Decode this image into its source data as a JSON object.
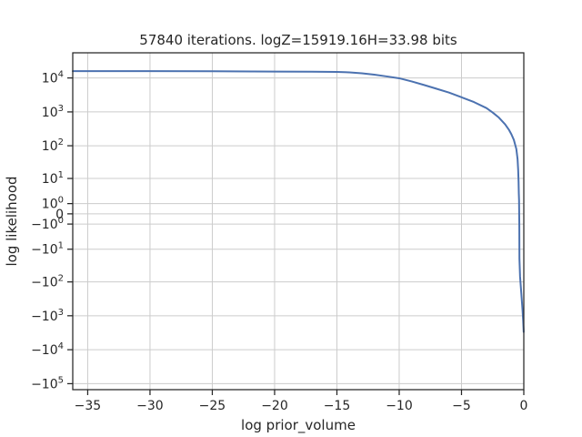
{
  "chart_data": {
    "type": "line",
    "title": "57840 iterations. logZ=15919.16H=33.98 bits",
    "xlabel": "log prior_volume",
    "ylabel": "log likelihood",
    "xlim": [
      -36.2,
      0
    ],
    "yscale": "symlog",
    "ylim_display": [
      -150000,
      55000
    ],
    "grid": true,
    "legend": "none",
    "line_color": "#4c72b0",
    "x_ticks": [
      {
        "value": -35,
        "label": "−35"
      },
      {
        "value": -30,
        "label": "−30"
      },
      {
        "value": -25,
        "label": "−25"
      },
      {
        "value": -20,
        "label": "−20"
      },
      {
        "value": -15,
        "label": "−15"
      },
      {
        "value": -10,
        "label": "−10"
      },
      {
        "value": -5,
        "label": "−5"
      },
      {
        "value": 0,
        "label": "0"
      }
    ],
    "y_ticks": [
      {
        "value": 10000,
        "base": "10",
        "exp": "4"
      },
      {
        "value": 1000,
        "base": "10",
        "exp": "3"
      },
      {
        "value": 100,
        "base": "10",
        "exp": "2"
      },
      {
        "value": 10,
        "base": "10",
        "exp": "1"
      },
      {
        "value": 1,
        "base": "10",
        "exp": "0"
      },
      {
        "value": 0,
        "base": "0",
        "exp": ""
      },
      {
        "value": -1,
        "base": "−10",
        "exp": "0"
      },
      {
        "value": -10,
        "base": "−10",
        "exp": "1"
      },
      {
        "value": -100,
        "base": "−10",
        "exp": "2"
      },
      {
        "value": -1000,
        "base": "−10",
        "exp": "3"
      },
      {
        "value": -10000,
        "base": "−10",
        "exp": "4"
      },
      {
        "value": -100000,
        "base": "−10",
        "exp": "5"
      }
    ],
    "series": [
      {
        "x": [
          -36.2,
          -30,
          -25,
          -20,
          -17,
          -15,
          -14,
          -13,
          -12,
          -11,
          -10,
          -9,
          -8,
          -7,
          -6,
          -5,
          -4,
          -3,
          -2.5,
          -2,
          -1.5,
          -1.2,
          -1,
          -0.8,
          -0.6,
          -0.5,
          -0.45,
          -0.42,
          -0.4,
          -0.38,
          -0.37,
          -0.36,
          -0.35,
          -0.3,
          -0.2,
          -0.1,
          -0.05,
          -0.01
        ],
        "y": [
          15919,
          15880,
          15700,
          15450,
          15300,
          15100,
          14600,
          13700,
          12500,
          11100,
          9800,
          7900,
          6200,
          4800,
          3700,
          2700,
          1950,
          1300,
          960,
          680,
          430,
          300,
          220,
          150,
          80,
          40,
          18,
          8,
          3,
          1.5,
          0,
          -1,
          -20,
          -70,
          -220,
          -700,
          -1400,
          -3000
        ]
      }
    ]
  }
}
